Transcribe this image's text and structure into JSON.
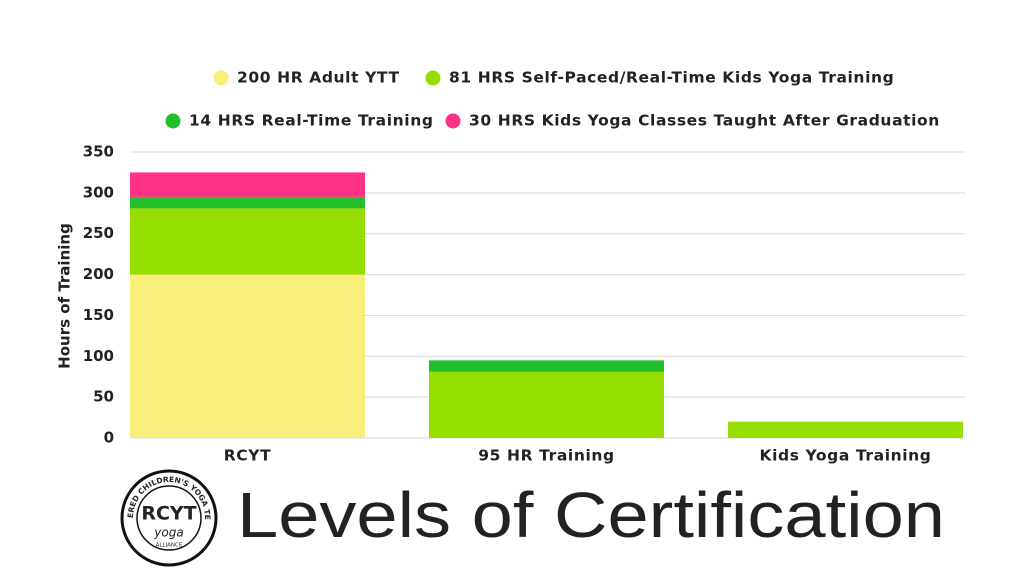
{
  "chart_data": {
    "type": "stacked-bar",
    "title": "Levels of Certification",
    "y_label": "Hours of Training",
    "categories": [
      "RCYT",
      "95 HR Training",
      "Kids Yoga Training"
    ],
    "series": [
      {
        "name": "200 HR Adult YTT",
        "color": "#f7ef7a",
        "values": [
          200,
          0,
          0
        ]
      },
      {
        "name": "81 HRS Self-Paced/Real-Time Kids Yoga Training",
        "color": "#95de00",
        "values": [
          81,
          81,
          20
        ]
      },
      {
        "name": "14 HRS Real-Time Training",
        "color": "#22bf2a",
        "values": [
          14,
          14,
          0
        ]
      },
      {
        "name": "30 HRS Kids Yoga Classes Taught After Graduation",
        "color": "#ff3385",
        "values": [
          30,
          0,
          0
        ]
      }
    ],
    "ylim": [
      0,
      350
    ],
    "yticks": [
      0,
      50,
      100,
      150,
      200,
      250,
      300,
      350
    ],
    "grid": true
  },
  "logo": {
    "arc_text": "REGISTERED CHILDREN'S YOGA TEACHER",
    "main": "RCYT",
    "sub": "yoga",
    "small": "ALLIANCE"
  }
}
